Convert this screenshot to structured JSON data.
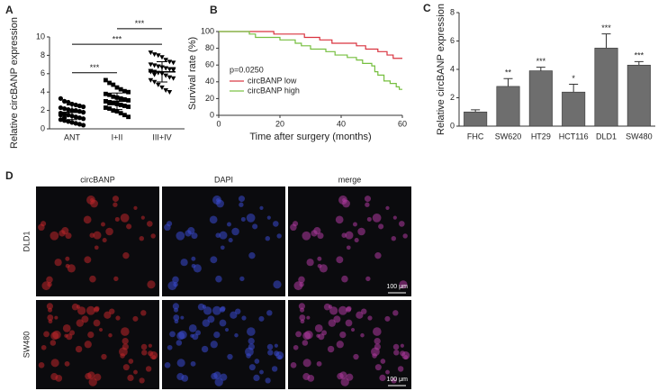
{
  "chart_data": [
    {
      "type": "strip",
      "label": "A",
      "ylabel": "Relative circBANP expression",
      "categories": [
        "ANT",
        "I+II",
        "III+IV"
      ],
      "markers": [
        "circle",
        "square",
        "triangle"
      ],
      "color": "#000000",
      "groups": [
        {
          "values": [
            3.3,
            3.0,
            2.9,
            2.7,
            2.6,
            2.5,
            2.4,
            2.3,
            2.2,
            2.1,
            2.0,
            2.0,
            1.9,
            1.8,
            1.7,
            1.6,
            1.5,
            1.4,
            1.3,
            1.2,
            1.1,
            1.0,
            0.9,
            0.8,
            0.7,
            0.6,
            0.5,
            0.4,
            1.5,
            1.2
          ],
          "mean": 1.8,
          "sd": 0.8
        },
        {
          "values": [
            5.3,
            5.0,
            4.8,
            4.5,
            4.3,
            4.1,
            4.0,
            3.8,
            3.7,
            3.5,
            3.4,
            3.3,
            3.2,
            3.1,
            3.0,
            2.9,
            2.8,
            2.7,
            2.6,
            2.5,
            2.4,
            2.3,
            2.2,
            2.0,
            1.9,
            1.7,
            1.5,
            1.3,
            3.0,
            2.8
          ],
          "mean": 3.0,
          "sd": 0.9
        },
        {
          "values": [
            8.3,
            8.1,
            8.0,
            7.8,
            7.5,
            7.3,
            7.2,
            7.0,
            6.9,
            6.8,
            6.7,
            6.6,
            6.5,
            6.4,
            6.3,
            6.2,
            6.1,
            6.0,
            5.8,
            5.6,
            5.5,
            5.3,
            5.1,
            4.8,
            4.5,
            4.2,
            4.0,
            6.5,
            6.2,
            5.9
          ],
          "mean": 6.2,
          "sd": 1.1
        }
      ],
      "significance": [
        {
          "label": "***",
          "between": [
            0,
            1
          ],
          "y": 6.1
        },
        {
          "label": "***",
          "between": [
            0,
            2
          ],
          "y": 9.2
        },
        {
          "label": "***",
          "between": [
            1,
            2
          ],
          "y": 10.9
        }
      ],
      "ylim": [
        0,
        10
      ],
      "yticks": [
        0,
        2,
        4,
        6,
        8,
        10
      ]
    },
    {
      "type": "line",
      "label": "B",
      "xlabel": "Time after surgery (months)",
      "ylabel": "Survival rate (%)",
      "annotation": "p=0.0250",
      "legend": "lower-left",
      "series": [
        {
          "name": "circBANP low",
          "color": "#d9333f",
          "x": [
            0,
            18,
            18,
            28,
            28,
            33,
            33,
            37,
            37,
            45,
            45,
            48,
            48,
            52,
            52,
            55,
            55,
            57,
            57,
            60
          ],
          "values": [
            100,
            100,
            97,
            97,
            93,
            93,
            90,
            90,
            86,
            86,
            83,
            83,
            79,
            79,
            76,
            76,
            72,
            72,
            68,
            68
          ]
        },
        {
          "name": "circBANP high",
          "color": "#76bf3f",
          "x": [
            0,
            10,
            10,
            12,
            12,
            20,
            20,
            25,
            25,
            27,
            27,
            30,
            30,
            35,
            35,
            38,
            38,
            42,
            42,
            45,
            45,
            47,
            47,
            50,
            50,
            51,
            51,
            52,
            52,
            54,
            54,
            56,
            56,
            58,
            58,
            59,
            59,
            60
          ],
          "values": [
            100,
            100,
            97,
            97,
            93,
            93,
            90,
            90,
            86,
            86,
            83,
            83,
            79,
            79,
            76,
            76,
            72,
            72,
            69,
            69,
            66,
            66,
            62,
            62,
            59,
            59,
            52,
            52,
            48,
            48,
            41,
            41,
            38,
            38,
            34,
            34,
            31,
            31
          ]
        }
      ],
      "xlim": [
        0,
        60
      ],
      "xticks": [
        0,
        20,
        40,
        60
      ],
      "ylim": [
        0,
        100
      ],
      "yticks": [
        0,
        20,
        40,
        60,
        80,
        100
      ]
    },
    {
      "type": "bar",
      "label": "C",
      "ylabel": "Relative circBANP expression",
      "categories": [
        "FHC",
        "SW620",
        "HT29",
        "HCT116",
        "DLD1",
        "SW480"
      ],
      "values": [
        1.0,
        2.8,
        3.9,
        2.4,
        5.5,
        4.3
      ],
      "errors": [
        0.15,
        0.55,
        0.25,
        0.55,
        1.0,
        0.25
      ],
      "value_labels": [
        null,
        "**",
        "***",
        "*",
        "***",
        "***"
      ],
      "color": "#6e6e6e",
      "ylim": [
        0,
        8
      ],
      "yticks": [
        0,
        2,
        4,
        6,
        8
      ]
    }
  ],
  "images": {
    "label": "D",
    "columns": [
      "circBANP",
      "DAPI",
      "merge"
    ],
    "rows": [
      "DLD1",
      "SW480"
    ],
    "scale_bar": "100 μm"
  }
}
